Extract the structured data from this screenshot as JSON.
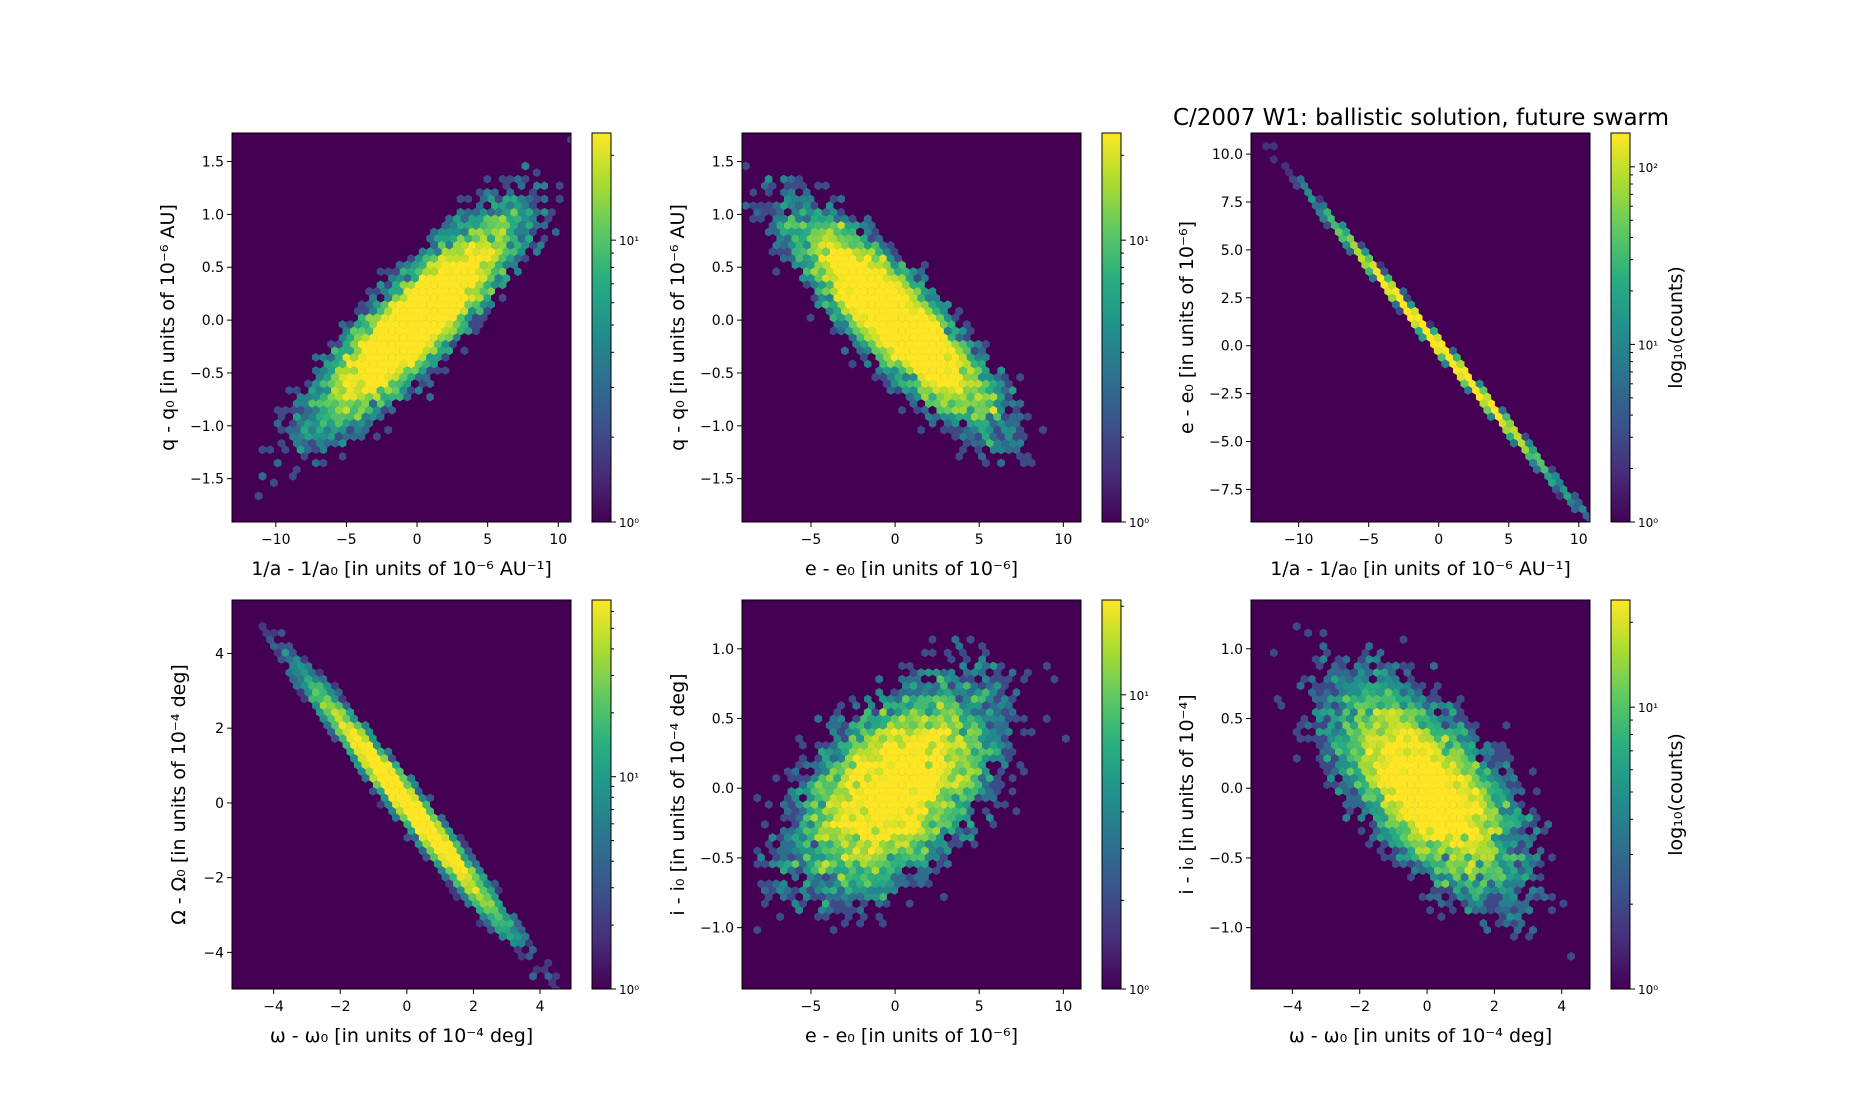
{
  "title": "C/2007 W1:  ballistic solution, future swarm",
  "chart_data": [
    {
      "type": "hexbin",
      "panel": "top-left",
      "xlabel": "1/a - 1/a₀ [in units of 10⁻⁶ AU⁻¹]",
      "ylabel": "q - q₀ [in units of 10⁻⁶ AU]",
      "xlim": [
        -13.1,
        10.9
      ],
      "ylim": [
        -1.91,
        1.77
      ],
      "xticks": [
        -10,
        -5,
        0,
        5,
        10
      ],
      "xticklabels": [
        "−10",
        "−5",
        "0",
        "5",
        "10"
      ],
      "yticks": [
        -1.5,
        -1.0,
        -0.5,
        0.0,
        0.5,
        1.0,
        1.5
      ],
      "yticklabels": [
        "−1.5",
        "−1.0",
        "−0.5",
        "0.0",
        "0.5",
        "1.0",
        "1.5"
      ],
      "distribution": {
        "center": [
          0,
          0
        ],
        "std": [
          3.6,
          0.5
        ],
        "correlation": 0.86
      },
      "colorbar": {
        "scale": "log",
        "range": [
          1,
          24
        ],
        "ticks": [
          1,
          10
        ],
        "ticklabels": [
          "10⁰",
          "10¹"
        ],
        "label": ""
      },
      "colormap": "viridis"
    },
    {
      "type": "hexbin",
      "panel": "top-middle",
      "xlabel": "e - e₀ [in units of 10⁻⁶]",
      "ylabel": "q - q₀ [in units of 10⁻⁶ AU]",
      "xlim": [
        -9.1,
        11.05
      ],
      "ylim": [
        -1.91,
        1.77
      ],
      "xticks": [
        -5,
        0,
        5,
        10
      ],
      "xticklabels": [
        "−5",
        "0",
        "5",
        "10"
      ],
      "yticks": [
        -1.5,
        -1.0,
        -0.5,
        0.0,
        0.5,
        1.0,
        1.5
      ],
      "yticklabels": [
        "−1.5",
        "−1.0",
        "−0.5",
        "0.0",
        "0.5",
        "1.0",
        "1.5"
      ],
      "distribution": {
        "center": [
          0,
          0
        ],
        "std": [
          3.0,
          0.5
        ],
        "correlation": -0.86
      },
      "colorbar": {
        "scale": "log",
        "range": [
          1,
          24
        ],
        "ticks": [
          1,
          10
        ],
        "ticklabels": [
          "10⁰",
          "10¹"
        ],
        "label": ""
      },
      "colormap": "viridis"
    },
    {
      "type": "hexbin",
      "panel": "top-right",
      "xlabel": "1/a - 1/a₀ [in units of 10⁻⁶ AU⁻¹]",
      "ylabel": "e - e₀ [in units of 10⁻⁶]",
      "xlim": [
        -13.4,
        10.8
      ],
      "ylim": [
        -9.2,
        11.1
      ],
      "xticks": [
        -10,
        -5,
        0,
        5,
        10
      ],
      "xticklabels": [
        "−10",
        "−5",
        "0",
        "5",
        "10"
      ],
      "yticks": [
        -7.5,
        -5.0,
        -2.5,
        0.0,
        2.5,
        5.0,
        7.5,
        10.0
      ],
      "yticklabels": [
        "−7.5",
        "−5.0",
        "−2.5",
        "0.0",
        "2.5",
        "5.0",
        "7.5",
        "10.0"
      ],
      "distribution": {
        "center": [
          0,
          0
        ],
        "std": [
          3.6,
          3.08
        ],
        "correlation": -0.999
      },
      "colorbar": {
        "scale": "log",
        "range": [
          1,
          155
        ],
        "ticks": [
          1,
          10,
          100
        ],
        "ticklabels": [
          "10⁰",
          "10¹",
          "10²"
        ],
        "label": "log₁₀(counts)"
      },
      "colormap": "viridis"
    },
    {
      "type": "hexbin",
      "panel": "bottom-left",
      "xlabel": "ω - ω₀ [in units of 10⁻⁴ deg]",
      "ylabel": "Ω - Ω₀ [in units of 10⁻⁴ deg]",
      "xlim": [
        -5.25,
        4.93
      ],
      "ylim": [
        -4.98,
        5.43
      ],
      "xticks": [
        -4,
        -2,
        0,
        2,
        4
      ],
      "xticklabels": [
        "−4",
        "−2",
        "0",
        "2",
        "4"
      ],
      "yticks": [
        -4,
        -2,
        0,
        2,
        4
      ],
      "yticklabels": [
        "−4",
        "−2",
        "0",
        "2",
        "4"
      ],
      "distribution": {
        "center": [
          0,
          0
        ],
        "std": [
          1.4,
          1.55
        ],
        "correlation": -0.985
      },
      "colorbar": {
        "scale": "log",
        "range": [
          1,
          68
        ],
        "ticks": [
          1,
          10
        ],
        "ticklabels": [
          "10⁰",
          "10¹"
        ],
        "label": ""
      },
      "colormap": "viridis"
    },
    {
      "type": "hexbin",
      "panel": "bottom-middle",
      "xlabel": "e - e₀ [in units of 10⁻⁶]",
      "ylabel": "i - i₀ [in units of 10⁻⁴ deg]",
      "xlim": [
        -9.1,
        11.05
      ],
      "ylim": [
        -1.44,
        1.35
      ],
      "xticks": [
        -5,
        0,
        5,
        10
      ],
      "xticklabels": [
        "−5",
        "0",
        "5",
        "10"
      ],
      "yticks": [
        -1.0,
        -0.5,
        0.0,
        0.5,
        1.0
      ],
      "yticklabels": [
        "−1.0",
        "−0.5",
        "0.0",
        "0.5",
        "1.0"
      ],
      "distribution": {
        "center": [
          0,
          0
        ],
        "std": [
          3.0,
          0.38
        ],
        "correlation": 0.5
      },
      "colorbar": {
        "scale": "log",
        "range": [
          1,
          21
        ],
        "ticks": [
          1,
          10
        ],
        "ticklabels": [
          "10⁰",
          "10¹"
        ],
        "label": ""
      },
      "colormap": "viridis"
    },
    {
      "type": "hexbin",
      "panel": "bottom-right",
      "xlabel": "ω - ω₀ [in units of 10⁻⁴ deg]",
      "ylabel": "i - i₀ [in units of 10⁻⁴]",
      "xlim": [
        -5.23,
        4.84
      ],
      "ylim": [
        -1.44,
        1.35
      ],
      "xticks": [
        -4,
        -2,
        0,
        2,
        4
      ],
      "xticklabels": [
        "−4",
        "−2",
        "0",
        "2",
        "4"
      ],
      "yticks": [
        -1.0,
        -0.5,
        0.0,
        0.5,
        1.0
      ],
      "yticklabels": [
        "−1.0",
        "−0.5",
        "0.0",
        "0.5",
        "1.0"
      ],
      "distribution": {
        "center": [
          0,
          0
        ],
        "std": [
          1.4,
          0.38
        ],
        "correlation": -0.62
      },
      "colorbar": {
        "scale": "log",
        "range": [
          1,
          24
        ],
        "ticks": [
          1,
          10
        ],
        "ticklabels": [
          "10⁰",
          "10¹"
        ],
        "label": "log₁₀(counts)"
      },
      "colormap": "viridis"
    }
  ],
  "colors": {
    "empty_bin": "#440154",
    "colormap_low": "#440154",
    "colormap_high": "#fde725"
  }
}
